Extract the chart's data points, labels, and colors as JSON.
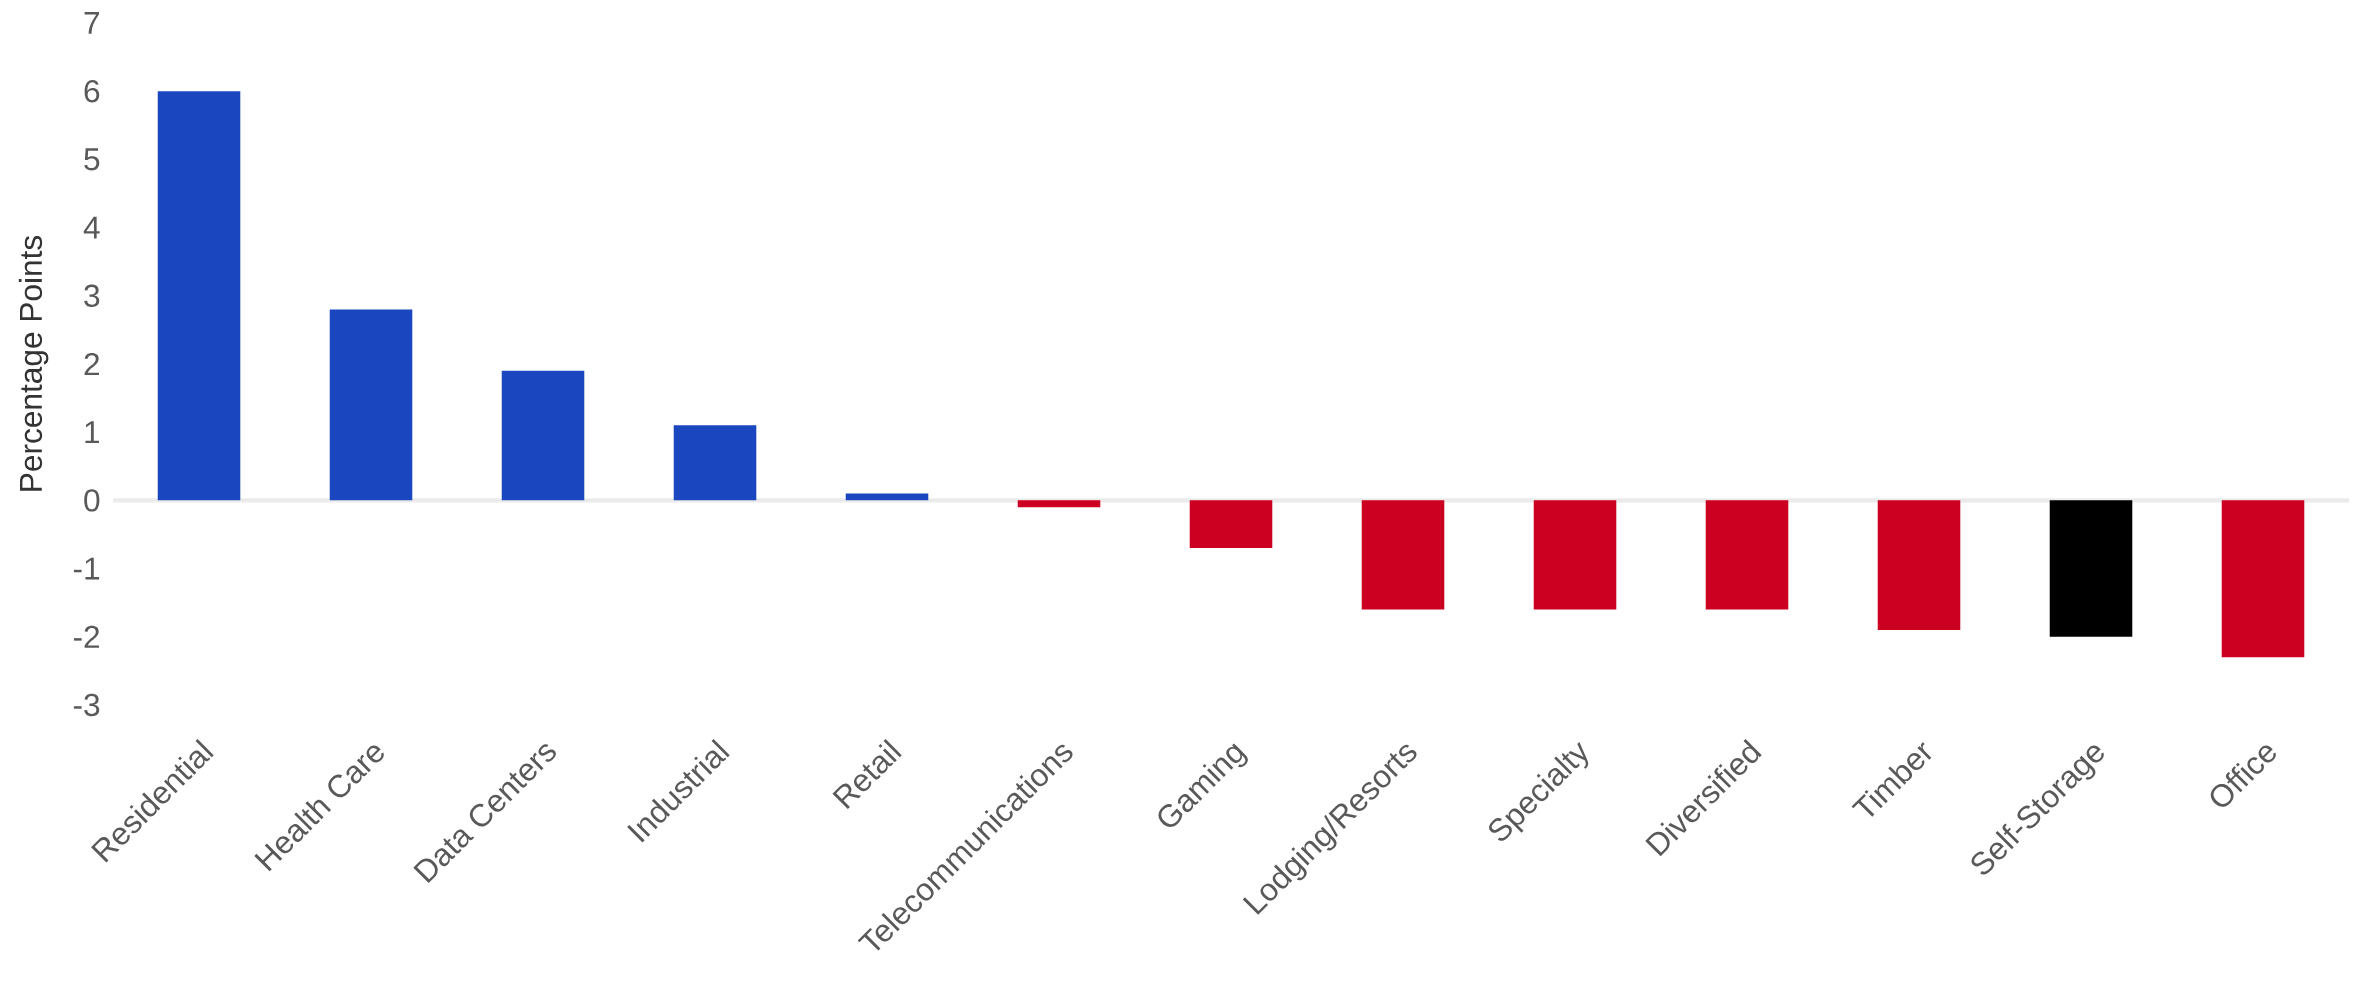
{
  "chart_data": {
    "type": "bar",
    "ylabel": "Percentage Points",
    "categories": [
      "Residential",
      "Health Care",
      "Data Centers",
      "Industrial",
      "Retail",
      "Telecommunications",
      "Gaming",
      "Lodging/Resorts",
      "Specialty",
      "Diversified",
      "Timber",
      "Self-Storage",
      "Office"
    ],
    "values": [
      6.0,
      2.8,
      1.9,
      1.1,
      0.1,
      -0.1,
      -0.7,
      -1.6,
      -1.6,
      -1.6,
      -1.9,
      -2.0,
      -2.3
    ],
    "colors": [
      "#1a47bf",
      "#1a47bf",
      "#1a47bf",
      "#1a47bf",
      "#1a47bf",
      "#cc0020",
      "#cc0020",
      "#cc0020",
      "#cc0020",
      "#cc0020",
      "#cc0020",
      "#000000",
      "#cc0020"
    ],
    "ylim": [
      -3,
      7
    ],
    "yticks": [
      -3,
      -2,
      -1,
      0,
      1,
      2,
      3,
      4,
      5,
      6,
      7
    ]
  }
}
